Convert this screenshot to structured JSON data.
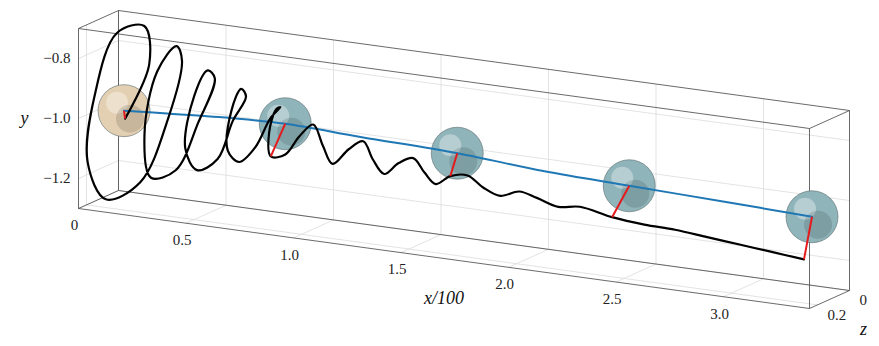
{
  "chart_data": {
    "type": "line3d",
    "xlabel": "x/100",
    "ylabel": "y",
    "zlabel": "z",
    "xlim": [
      0,
      3.4
    ],
    "ylim": [
      -1.3,
      -0.7
    ],
    "zlim": [
      0,
      0.25
    ],
    "xticks": [
      0,
      0.5,
      {
        "value": 1,
        "label": "1.0"
      },
      1.5,
      {
        "value": 2,
        "label": "2.0"
      },
      2.5,
      {
        "value": 3,
        "label": "3.0"
      }
    ],
    "yticks": [
      {
        "value": -1.2,
        "label": "−1.2"
      },
      {
        "value": -1.0,
        "label": "−1.0"
      },
      {
        "value": -0.8,
        "label": "−0.8"
      }
    ],
    "zticks": [
      0,
      0.2
    ],
    "grid": true,
    "series": [
      {
        "color": "#1f77b4",
        "values": [
          [
            0.1,
            -1.0,
            0.1
          ],
          [
            0.3,
            -0.99,
            0.1
          ],
          [
            0.5,
            -0.98,
            0.1
          ],
          [
            0.85,
            -0.97,
            0.1
          ],
          [
            1.2,
            -0.98,
            0.1
          ],
          [
            1.65,
            -0.99,
            0.1
          ],
          [
            2.05,
            -1.01,
            0.1
          ],
          [
            2.45,
            -1.02,
            0.1
          ],
          [
            2.9,
            -1.03,
            0.1
          ],
          [
            3.3,
            -1.04,
            0.1
          ]
        ]
      },
      {
        "color": "#000000",
        "values": [
          [
            0.12,
            -1.02,
            0.12
          ],
          [
            0.18,
            -0.85,
            0.05
          ],
          [
            0.12,
            -0.74,
            0.0
          ],
          [
            0.03,
            -0.76,
            0.05
          ],
          [
            0.0,
            -0.95,
            0.15
          ],
          [
            0.02,
            -1.15,
            0.22
          ],
          [
            0.12,
            -1.26,
            0.24
          ],
          [
            0.25,
            -1.2,
            0.2
          ],
          [
            0.32,
            -1.0,
            0.12
          ],
          [
            0.34,
            -0.82,
            0.06
          ],
          [
            0.3,
            -0.78,
            0.04
          ],
          [
            0.24,
            -0.86,
            0.08
          ],
          [
            0.24,
            -1.05,
            0.16
          ],
          [
            0.3,
            -1.18,
            0.2
          ],
          [
            0.4,
            -1.15,
            0.18
          ],
          [
            0.46,
            -1.0,
            0.12
          ],
          [
            0.5,
            -0.86,
            0.07
          ],
          [
            0.46,
            -0.84,
            0.06
          ],
          [
            0.42,
            -0.92,
            0.09
          ],
          [
            0.43,
            -1.08,
            0.16
          ],
          [
            0.5,
            -1.14,
            0.18
          ],
          [
            0.58,
            -1.1,
            0.16
          ],
          [
            0.62,
            -0.98,
            0.12
          ],
          [
            0.66,
            -0.9,
            0.09
          ],
          [
            0.63,
            -0.88,
            0.08
          ],
          [
            0.6,
            -0.95,
            0.1
          ],
          [
            0.62,
            -1.07,
            0.15
          ],
          [
            0.68,
            -1.1,
            0.16
          ],
          [
            0.74,
            -1.05,
            0.14
          ],
          [
            0.78,
            -0.96,
            0.1
          ],
          [
            0.82,
            -0.92,
            0.09
          ],
          [
            0.8,
            -0.93,
            0.09
          ],
          [
            0.79,
            -1.0,
            0.12
          ],
          [
            0.82,
            -1.07,
            0.15
          ],
          [
            0.88,
            -1.06,
            0.14
          ],
          [
            0.93,
            -1.0,
            0.12
          ],
          [
            0.98,
            -0.96,
            0.1
          ],
          [
            1.04,
            -1.02,
            0.12
          ],
          [
            1.1,
            -1.07,
            0.14
          ],
          [
            1.16,
            -1.02,
            0.12
          ],
          [
            1.22,
            -0.99,
            0.11
          ],
          [
            1.28,
            -1.04,
            0.13
          ],
          [
            1.34,
            -1.08,
            0.14
          ],
          [
            1.4,
            -1.04,
            0.13
          ],
          [
            1.46,
            -1.02,
            0.12
          ],
          [
            1.52,
            -1.06,
            0.13
          ],
          [
            1.58,
            -1.09,
            0.14
          ],
          [
            1.64,
            -1.06,
            0.13
          ],
          [
            1.72,
            -1.05,
            0.13
          ],
          [
            1.8,
            -1.08,
            0.14
          ],
          [
            1.88,
            -1.1,
            0.14
          ],
          [
            1.96,
            -1.08,
            0.13
          ],
          [
            2.05,
            -1.09,
            0.14
          ],
          [
            2.15,
            -1.11,
            0.14
          ],
          [
            2.25,
            -1.1,
            0.14
          ],
          [
            2.4,
            -1.12,
            0.14
          ],
          [
            2.55,
            -1.13,
            0.14
          ],
          [
            2.7,
            -1.13,
            0.15
          ],
          [
            2.85,
            -1.14,
            0.15
          ],
          [
            3.0,
            -1.15,
            0.15
          ],
          [
            3.15,
            -1.16,
            0.15
          ],
          [
            3.3,
            -1.17,
            0.15
          ]
        ]
      }
    ],
    "spheres": [
      {
        "x": 0.1,
        "y": -1.0,
        "z": 0.1,
        "color": "#e3cfb2"
      },
      {
        "x": 0.85,
        "y": -0.97,
        "z": 0.1,
        "color": "#8fb4ba"
      },
      {
        "x": 1.65,
        "y": -0.99,
        "z": 0.1,
        "color": "#8fb4ba"
      },
      {
        "x": 2.45,
        "y": -1.02,
        "z": 0.1,
        "color": "#8fb4ba"
      },
      {
        "x": 3.3,
        "y": -1.04,
        "z": 0.1,
        "color": "#8fb4ba"
      }
    ],
    "links": {
      "color": "#e41a1c",
      "values": [
        {
          "from": [
            0.1,
            -1.0,
            0.1
          ],
          "to": [
            0.12,
            -1.02,
            0.12
          ]
        },
        {
          "from": [
            0.85,
            -0.97,
            0.1
          ],
          "to": [
            0.82,
            -1.07,
            0.15
          ]
        },
        {
          "from": [
            1.65,
            -0.99,
            0.1
          ],
          "to": [
            1.64,
            -1.06,
            0.13
          ]
        },
        {
          "from": [
            2.45,
            -1.02,
            0.1
          ],
          "to": [
            2.4,
            -1.12,
            0.14
          ]
        },
        {
          "from": [
            3.3,
            -1.04,
            0.1
          ],
          "to": [
            3.3,
            -1.17,
            0.15
          ]
        }
      ]
    }
  }
}
